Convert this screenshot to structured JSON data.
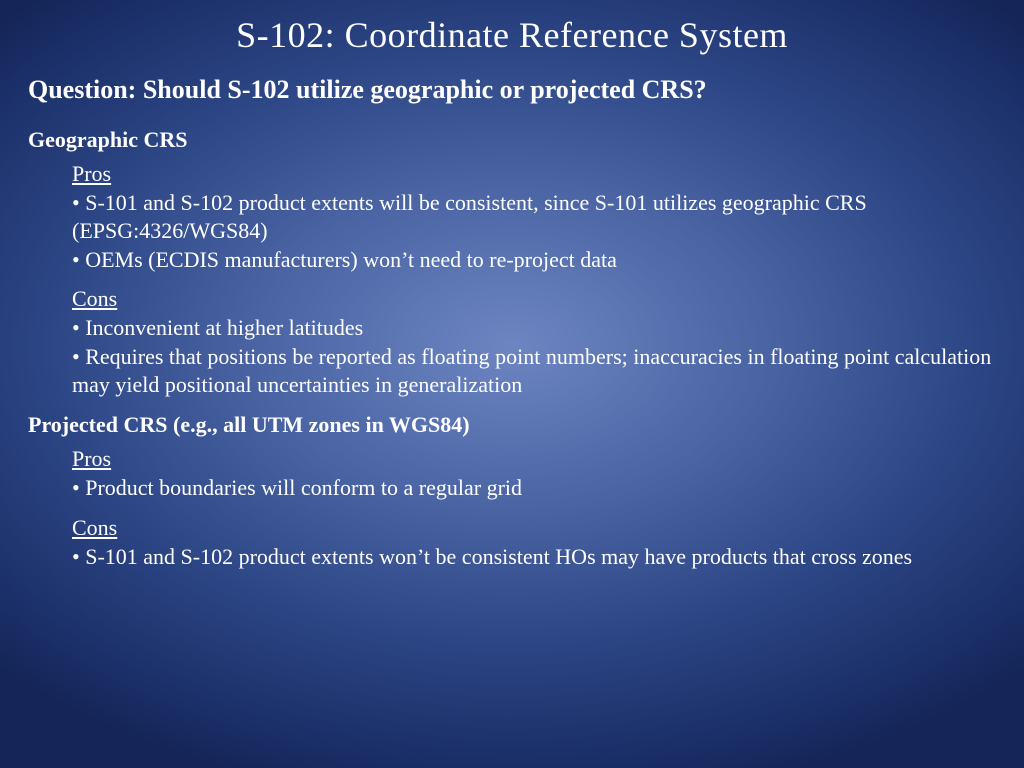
{
  "colors": {
    "background_center": "#6d86c2",
    "background_mid": "#2c4584",
    "background_edge": "#152557",
    "text": "#ffffff"
  },
  "typography": {
    "family": "Palatino Linotype / Book Antiqua / serif",
    "title_fontsize": 36,
    "question_fontsize": 26,
    "section_fontsize": 22,
    "body_fontsize": 22
  },
  "title": "S-102: Coordinate Reference System",
  "question": "Question: Should S-102 utilize geographic or projected CRS?",
  "sections": [
    {
      "header": "Geographic CRS",
      "pros_label": "Pros",
      "pros": [
        "• S-101 and S-102 product extents will be consistent, since S-101 utilizes geographic CRS (EPSG:4326/WGS84)",
        "• OEMs (ECDIS manufacturers) won’t need to re-project data"
      ],
      "cons_label": "Cons",
      "cons": [
        "• Inconvenient at higher latitudes",
        "• Requires that positions be reported as floating point numbers; inaccuracies in floating point calculation may yield positional uncertainties in generalization"
      ]
    },
    {
      "header": "Projected CRS (e.g., all UTM zones in WGS84)",
      "pros_label": "Pros",
      "pros": [
        "• Product boundaries will conform to a regular grid"
      ],
      "cons_label": "Cons",
      "cons": [
        "• S-101 and S-102 product extents won’t be consistent HOs may have products that cross zones"
      ]
    }
  ]
}
